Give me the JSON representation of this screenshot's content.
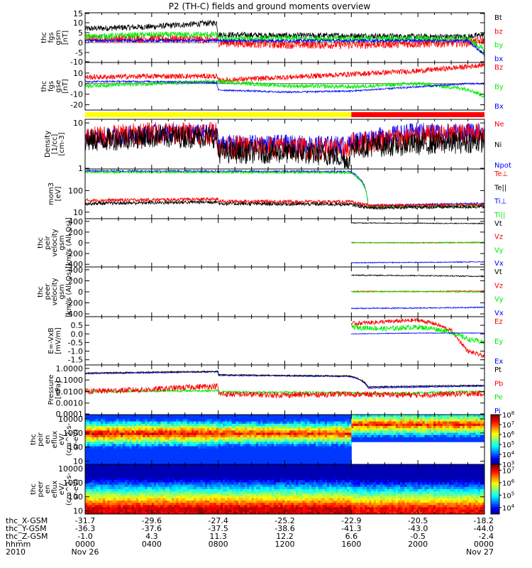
{
  "title": "P2 (TH-C) fields and ground moments overview",
  "colors": {
    "black": "#000000",
    "red": "#ff0000",
    "green": "#00ee00",
    "blue": "#0000ff",
    "yellow": "#ffff00"
  },
  "chart_data": [
    {
      "type": "line",
      "id": "fgs-gsm",
      "ylabel": [
        "thc",
        "fgs",
        "gsm",
        "[nT]"
      ],
      "ylim": [
        -10,
        15
      ],
      "yticks": [
        "15",
        "10",
        "5",
        "0",
        "-5",
        "-10"
      ],
      "legend": [
        {
          "name": "Bt",
          "color": "#000000"
        },
        {
          "name": "bz",
          "color": "#ff0000"
        },
        {
          "name": "by",
          "color": "#00ee00"
        },
        {
          "name": "bx",
          "color": "#0000ff"
        }
      ],
      "series": [
        {
          "name": "Bt",
          "color": "#000000",
          "x": [
            0,
            4,
            7.9,
            8,
            12,
            16,
            20,
            23,
            24
          ],
          "y": [
            7,
            8,
            10,
            4,
            3.5,
            3.5,
            3,
            3,
            4
          ],
          "noise": 1.5
        },
        {
          "name": "bz",
          "color": "#ff0000",
          "x": [
            0,
            4,
            7.9,
            8,
            12,
            16,
            20,
            23,
            24
          ],
          "y": [
            2,
            2,
            1.5,
            0,
            -1,
            -1,
            -0.5,
            0,
            1
          ],
          "noise": 2.2
        },
        {
          "name": "by",
          "color": "#00ee00",
          "x": [
            0,
            4,
            7.9,
            8,
            12,
            16,
            20,
            23,
            24
          ],
          "y": [
            3,
            4,
            4,
            2,
            2,
            2,
            2,
            2,
            -4
          ],
          "noise": 1.5
        },
        {
          "name": "bx",
          "color": "#0000ff",
          "x": [
            0,
            4,
            7.9,
            8,
            12,
            16,
            20,
            23,
            24
          ],
          "y": [
            1,
            1,
            1,
            1,
            1,
            1,
            1,
            1,
            -6
          ],
          "noise": 0.8
        }
      ]
    },
    {
      "type": "line",
      "id": "fgs-gse",
      "ylabel": [
        "thc",
        "fgs",
        "gse",
        "[nT]"
      ],
      "ylim": [
        -25,
        20
      ],
      "yticks": [
        "10",
        "0",
        "-10",
        "-20"
      ],
      "legend": [
        {
          "name": "Bz",
          "color": "#ff0000"
        },
        {
          "name": "By",
          "color": "#00ee00"
        },
        {
          "name": "Bx",
          "color": "#0000ff"
        }
      ],
      "series": [
        {
          "name": "Bz",
          "color": "#ff0000",
          "x": [
            0,
            4,
            7.9,
            8,
            12,
            16,
            20,
            23,
            24
          ],
          "y": [
            6,
            7,
            7,
            3,
            6,
            9,
            12,
            16,
            18
          ],
          "noise": 2.5
        },
        {
          "name": "By",
          "color": "#00ee00",
          "x": [
            0,
            4,
            7.9,
            8,
            12,
            16,
            20,
            23,
            24
          ],
          "y": [
            -2,
            0,
            2,
            2,
            -2,
            -3,
            0,
            -5,
            -12
          ],
          "noise": 2
        },
        {
          "name": "Bx",
          "color": "#0000ff",
          "x": [
            0,
            4,
            7.9,
            8,
            12,
            16,
            20,
            23,
            24
          ],
          "y": [
            2,
            2,
            1,
            -6,
            -8,
            -7,
            -3,
            0,
            0
          ],
          "noise": 0.8
        }
      ]
    },
    {
      "type": "log-line",
      "id": "density",
      "ylabel": [
        "Density",
        "[1/cc]",
        "[cm-3]"
      ],
      "ylim": [
        1,
        12
      ],
      "yticks": [
        {
          "v": 10,
          "t": "10"
        },
        {
          "v": 1,
          "t": "1"
        }
      ],
      "legend": [
        {
          "name": "Ne",
          "color": "#ff0000"
        },
        {
          "name": "Ni",
          "color": "#000000"
        },
        {
          "name": "Npot",
          "color": "#0000ff"
        }
      ],
      "series": [
        {
          "name": "Npot",
          "color": "#0000ff",
          "x": [
            0,
            4,
            7.9,
            8,
            12,
            15.9,
            16,
            20,
            24
          ],
          "y": [
            4.5,
            6,
            6,
            3.5,
            3.5,
            3.3,
            4,
            6.5,
            6
          ],
          "noise": 0.2
        },
        {
          "name": "Ne",
          "color": "#ff0000",
          "x": [
            0,
            4,
            7.9,
            8,
            12,
            15.9,
            16,
            20,
            24
          ],
          "y": [
            4.5,
            6,
            6,
            3,
            2.9,
            2.6,
            3.5,
            5,
            6
          ],
          "noise": 0.25
        },
        {
          "name": "Ni",
          "color": "#000000",
          "x": [
            0,
            4,
            7.9,
            8,
            12,
            15,
            15.9,
            16,
            20,
            24
          ],
          "y": [
            4,
            5,
            5,
            2.3,
            2.3,
            2,
            1.4,
            3,
            3.5,
            4
          ],
          "noise": 0.25
        }
      ]
    },
    {
      "type": "log-line",
      "id": "temperature",
      "ylabel": [
        "mom3",
        "[eV]"
      ],
      "ylim": [
        5,
        1000
      ],
      "yticks": [
        {
          "v": 100,
          "t": "100"
        },
        {
          "v": 10,
          "t": "10"
        }
      ],
      "legend": [
        {
          "name": "Te⊥",
          "color": "#ff0000"
        },
        {
          "name": "Te||",
          "color": "#000000"
        },
        {
          "name": "Ti⊥",
          "color": "#0000ff"
        },
        {
          "name": "Ti||",
          "color": "#00ee00"
        }
      ],
      "series": [
        {
          "name": "Ti⊥",
          "color": "#0000ff",
          "x": [
            0,
            8,
            15.9,
            17,
            24
          ],
          "y": [
            800,
            780,
            750,
            20,
            25
          ],
          "noise": 0.05
        },
        {
          "name": "Ti||",
          "color": "#00ee00",
          "x": [
            0,
            8,
            15.9,
            17,
            24
          ],
          "y": [
            720,
            700,
            680,
            17,
            20
          ],
          "noise": 0.05
        },
        {
          "name": "Te⊥",
          "color": "#ff0000",
          "x": [
            0,
            8,
            8.01,
            15.9,
            17,
            24
          ],
          "y": [
            35,
            40,
            32,
            30,
            20,
            22
          ],
          "noise": 0.08
        },
        {
          "name": "Te||",
          "color": "#000000",
          "x": [
            0,
            8,
            8.01,
            15.9,
            17,
            24
          ],
          "y": [
            25,
            30,
            25,
            23,
            16,
            18
          ],
          "noise": 0.08
        }
      ]
    },
    {
      "type": "line",
      "id": "peir-velocity",
      "ylabel": [
        "thc",
        "peir",
        "velocity",
        "gsm",
        "[km/s (All Qs)]"
      ],
      "ylim": [
        -450,
        450
      ],
      "yticks": [
        "400",
        "200",
        "0",
        "-200",
        "-400"
      ],
      "data_start": 16.0,
      "legend": [
        {
          "name": "Vt",
          "color": "#000000"
        },
        {
          "name": "Vz",
          "color": "#ff0000"
        },
        {
          "name": "Vy",
          "color": "#00ee00"
        },
        {
          "name": "Vx",
          "color": "#0000ff"
        }
      ],
      "series": [
        {
          "name": "Vt",
          "color": "#000000",
          "x": [
            16,
            20,
            24
          ],
          "y": [
            370,
            365,
            360
          ],
          "noise": 8
        },
        {
          "name": "Vz",
          "color": "#ff0000",
          "x": [
            16,
            20,
            24
          ],
          "y": [
            5,
            0,
            5
          ],
          "noise": 8
        },
        {
          "name": "Vy",
          "color": "#00ee00",
          "x": [
            16,
            20,
            24
          ],
          "y": [
            0,
            5,
            10
          ],
          "noise": 8
        },
        {
          "name": "Vx",
          "color": "#0000ff",
          "x": [
            16,
            20,
            24
          ],
          "y": [
            -370,
            -365,
            -355
          ],
          "noise": 8
        }
      ]
    },
    {
      "type": "line",
      "id": "peer-velocity",
      "ylabel": [
        "thc",
        "peer",
        "velocity",
        "gsm",
        "[km/s (All Qs)]"
      ],
      "ylim": [
        -450,
        450
      ],
      "yticks": [
        "400",
        "200",
        "0",
        "-200",
        "-400"
      ],
      "data_start": 16.0,
      "legend": [
        {
          "name": "Vt",
          "color": "#000000"
        },
        {
          "name": "Vz",
          "color": "#ff0000"
        },
        {
          "name": "Vy",
          "color": "#00ee00"
        },
        {
          "name": "Vx",
          "color": "#0000ff"
        }
      ],
      "series": [
        {
          "name": "Vt",
          "color": "#000000",
          "x": [
            16,
            20,
            24
          ],
          "y": [
            300,
            295,
            280
          ],
          "noise": 10
        },
        {
          "name": "Vz",
          "color": "#ff0000",
          "x": [
            16,
            20,
            24
          ],
          "y": [
            10,
            5,
            15
          ],
          "noise": 10
        },
        {
          "name": "Vy",
          "color": "#00ee00",
          "x": [
            16,
            20,
            24
          ],
          "y": [
            0,
            5,
            -5
          ],
          "noise": 10
        },
        {
          "name": "Vx",
          "color": "#0000ff",
          "x": [
            16,
            20,
            24
          ],
          "y": [
            -300,
            -295,
            -280
          ],
          "noise": 10
        }
      ]
    },
    {
      "type": "line",
      "id": "efield",
      "ylabel": [
        "E=-VxB",
        "[mV/m]"
      ],
      "ylim": [
        -1.8,
        1.0
      ],
      "yticks": [
        "0.5",
        "0.0",
        "-0.5",
        "-1.0",
        "-1.5"
      ],
      "data_start": 16.0,
      "legend": [
        {
          "name": "Ez",
          "color": "#ff0000"
        },
        {
          "name": "Ey",
          "color": "#00ee00"
        },
        {
          "name": "Ex",
          "color": "#0000ff"
        }
      ],
      "series": [
        {
          "name": "Ez",
          "color": "#ff0000",
          "x": [
            16,
            18,
            20,
            21,
            22,
            23,
            24
          ],
          "y": [
            0.6,
            0.7,
            0.8,
            0.6,
            0.2,
            -1.0,
            -1.3
          ],
          "noise": 0.12
        },
        {
          "name": "Ey",
          "color": "#00ee00",
          "x": [
            16,
            18,
            20,
            21,
            22,
            23,
            24
          ],
          "y": [
            0.4,
            0.3,
            0.4,
            0.3,
            0.1,
            -0.3,
            -0.5
          ],
          "noise": 0.15
        },
        {
          "name": "Ex",
          "color": "#0000ff",
          "x": [
            16,
            20,
            24
          ],
          "y": [
            0.0,
            0.05,
            0.05
          ],
          "noise": 0.02
        }
      ]
    },
    {
      "type": "log-line",
      "id": "pressure",
      "ylabel": [
        "Pressure",
        "[nPa]"
      ],
      "ylim": [
        0.0001,
        2
      ],
      "yticks": [
        {
          "v": 1,
          "t": "1.0000"
        },
        {
          "v": 0.1,
          "t": "0.1000"
        },
        {
          "v": 0.01,
          "t": "0.0100"
        },
        {
          "v": 0.001,
          "t": "0.0010"
        },
        {
          "v": 0.0001,
          "t": "0.0001"
        }
      ],
      "legend": [
        {
          "name": "Pt",
          "color": "#000000"
        },
        {
          "name": "Pb",
          "color": "#ff0000"
        },
        {
          "name": "Pe",
          "color": "#00ee00"
        },
        {
          "name": "Pi",
          "color": "#0000ff"
        }
      ],
      "series": [
        {
          "name": "Pi",
          "color": "#0000ff",
          "x": [
            0,
            8,
            8.01,
            15.9,
            17,
            24
          ],
          "y": [
            0.35,
            0.5,
            0.25,
            0.2,
            0.02,
            0.03
          ],
          "noise": 0.05
        },
        {
          "name": "Pt",
          "color": "#000000",
          "x": [
            0,
            8,
            8.01,
            15.9,
            17,
            24
          ],
          "y": [
            0.4,
            0.55,
            0.28,
            0.22,
            0.025,
            0.035
          ],
          "noise": 0.05
        },
        {
          "name": "Pe",
          "color": "#00ee00",
          "x": [
            0,
            8,
            8.01,
            15.9,
            17,
            24
          ],
          "y": [
            0.01,
            0.012,
            0.009,
            0.008,
            0.006,
            0.01
          ],
          "noise": 0.1
        },
        {
          "name": "Pb",
          "color": "#ff0000",
          "x": [
            0,
            4,
            8,
            8.01,
            12,
            16,
            20,
            24
          ],
          "y": [
            0.01,
            0.015,
            0.03,
            0.006,
            0.005,
            0.006,
            0.005,
            0.007
          ],
          "noise": 0.25
        }
      ]
    },
    {
      "type": "heatmap",
      "id": "peir-eflux",
      "ylabel": [
        "thc",
        "peir",
        "en",
        "eflux",
        "eV/",
        "(cm^2-s-",
        "sr-eV)"
      ],
      "yticks": [
        {
          "v": 10000,
          "t": "10000"
        },
        {
          "v": 1000,
          "t": "1000"
        },
        {
          "v": 100,
          "t": "100"
        },
        {
          "v": 10,
          "t": "10"
        }
      ],
      "ylim": [
        6,
        20000
      ],
      "colorbar": {
        "min": 1000,
        "max": 100000000,
        "labels": [
          "10^8",
          "10^7",
          "10^6",
          "10^5",
          "10^4",
          "10^3"
        ]
      }
    },
    {
      "type": "heatmap",
      "id": "peer-eflux",
      "ylabel": [
        "thc",
        "peer",
        "en",
        "eflux",
        "eV/",
        "(cm^2-s-",
        "sr-eV)"
      ],
      "yticks": [
        {
          "v": 10000,
          "t": "10000"
        },
        {
          "v": 1000,
          "t": "1000"
        },
        {
          "v": 100,
          "t": "100"
        },
        {
          "v": 10,
          "t": "10"
        }
      ],
      "ylim": [
        6,
        20000
      ],
      "colorbar": {
        "min": 3000,
        "max": 30000000,
        "labels": [
          "10^7",
          "10^6",
          "10^5",
          "10^4"
        ]
      }
    }
  ],
  "mode_bar": {
    "segments": [
      {
        "from": 0,
        "to": 16,
        "color": "#ffff00"
      },
      {
        "from": 16,
        "to": 24,
        "color": "#ff0000"
      }
    ]
  },
  "xaxis": {
    "xlim": [
      0,
      24
    ],
    "ticks": [
      0,
      4,
      8,
      12,
      16,
      20,
      24
    ],
    "rows": [
      {
        "label": "thc_X-GSM",
        "values": [
          "-31.7",
          "-29.6",
          "-27.4",
          "-25.2",
          "-22.9",
          "-20.5",
          "-18.2"
        ]
      },
      {
        "label": "thc_Y-GSM",
        "values": [
          "-36.3",
          "-37.6",
          "-37.5",
          "-38.6",
          "-41.3",
          "-43.0",
          "-44.0"
        ]
      },
      {
        "label": "thc_Z-GSM",
        "values": [
          "-1.0",
          "4.3",
          "11.3",
          "12.2",
          "6.6",
          "-0.5",
          "-2.4"
        ]
      },
      {
        "label": "hhmm",
        "values": [
          "0000",
          "0400",
          "0800",
          "1200",
          "1600",
          "2000",
          "0000"
        ]
      },
      {
        "label": "2010",
        "values": [
          "Nov 26",
          "",
          "",
          "",
          "",
          "",
          "Nov 27"
        ]
      }
    ]
  }
}
